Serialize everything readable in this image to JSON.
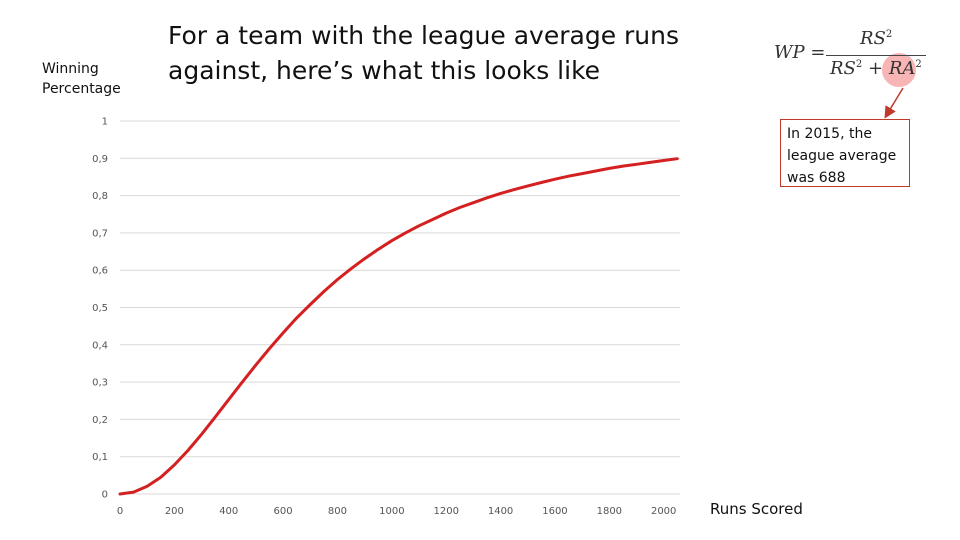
{
  "slide": {
    "title": "For a team with the league average runs against, here’s what this looks like",
    "callout_text": "In 2015, the league average was 688",
    "formula": {
      "lhs": "WP =",
      "numerator": "RS",
      "denominator_a": "RS",
      "denominator_plus": "+",
      "denominator_b": "RA",
      "exponent": "2"
    }
  },
  "chart_data": {
    "type": "line",
    "title": "",
    "ylabel_line1": "Winning",
    "ylabel_line2": "Percentage",
    "xlabel": "Runs Scored",
    "xlim": [
      0,
      2060
    ],
    "ylim": [
      0,
      1
    ],
    "x_ticks": [
      "0",
      "200",
      "400",
      "600",
      "800",
      "1000",
      "1200",
      "1400",
      "1600",
      "1800",
      "2000"
    ],
    "y_ticks": [
      "0",
      "0,1",
      "0,2",
      "0,3",
      "0,4",
      "0,5",
      "0,6",
      "0,7",
      "0,8",
      "0,9",
      "1"
    ],
    "grid": true,
    "series": [
      {
        "color": "#d42020",
        "x": [
          0,
          50,
          100,
          150,
          200,
          250,
          300,
          350,
          400,
          450,
          500,
          550,
          600,
          650,
          700,
          750,
          800,
          850,
          900,
          950,
          1000,
          1050,
          1100,
          1150,
          1200,
          1250,
          1300,
          1350,
          1400,
          1450,
          1500,
          1550,
          1600,
          1650,
          1700,
          1750,
          1800,
          1850,
          1900,
          1950,
          2000,
          2050
        ],
        "y": [
          0.0,
          0.005,
          0.021,
          0.045,
          0.078,
          0.117,
          0.16,
          0.206,
          0.253,
          0.3,
          0.346,
          0.39,
          0.432,
          0.472,
          0.508,
          0.543,
          0.575,
          0.604,
          0.631,
          0.656,
          0.679,
          0.7,
          0.719,
          0.736,
          0.753,
          0.768,
          0.781,
          0.794,
          0.806,
          0.816,
          0.826,
          0.835,
          0.844,
          0.852,
          0.859,
          0.866,
          0.873,
          0.879,
          0.884,
          0.889,
          0.894,
          0.899
        ]
      }
    ]
  }
}
